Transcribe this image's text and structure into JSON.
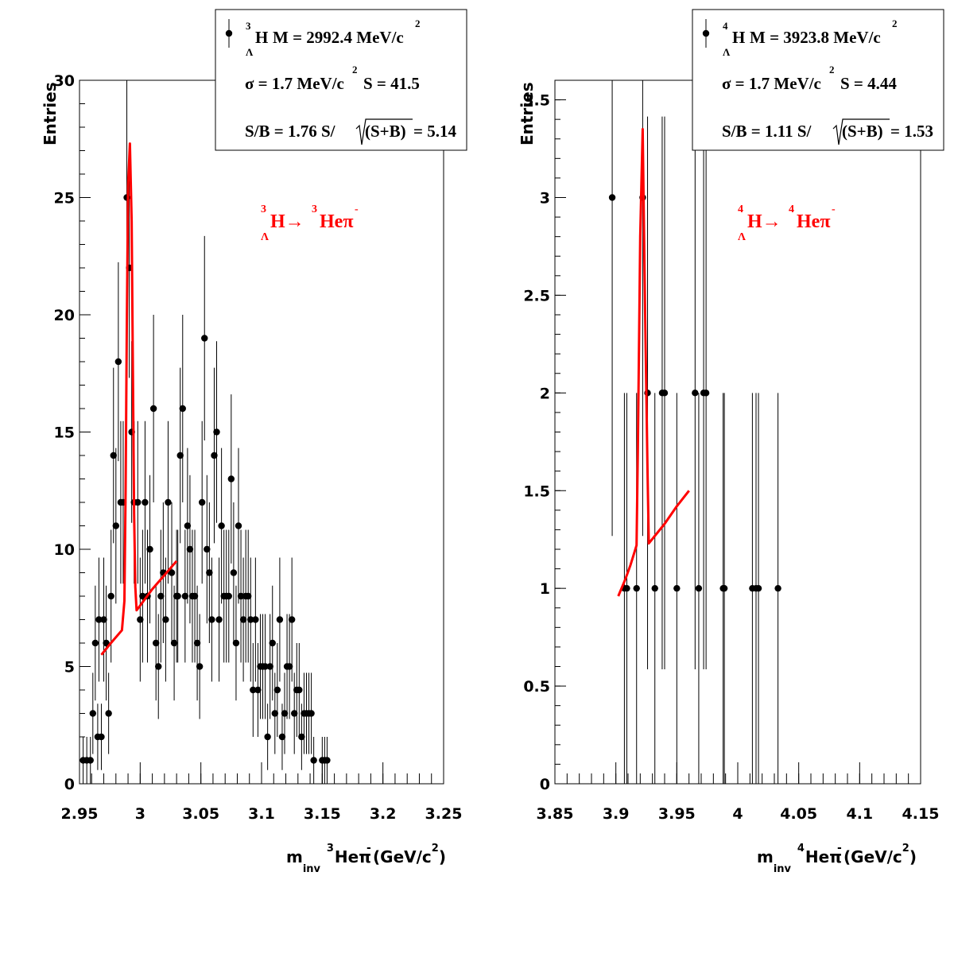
{
  "chart_data": [
    {
      "type": "scatter",
      "xlabel": {
        "main": "m",
        "sub": "inv",
        "sup_left": "3",
        "nucleus": "He",
        "pion": "π",
        "charge": "-",
        "unit": "(GeV/c",
        "unit_sup": "2",
        "unit_close": ")"
      },
      "ylabel": "Entries",
      "xlim": [
        2.95,
        3.25
      ],
      "ylim": [
        0,
        30
      ],
      "xticks": [
        2.95,
        3,
        3.05,
        3.1,
        3.15,
        3.2,
        3.25
      ],
      "xtick_labels": [
        "2.95",
        "3",
        "3.05",
        "3.1",
        "3.15",
        "3.2",
        "3.25"
      ],
      "yticks": [
        0,
        5,
        10,
        15,
        20,
        25,
        30
      ],
      "ytick_labels": [
        "0",
        "5",
        "10",
        "15",
        "20",
        "25",
        "30"
      ],
      "legend": {
        "line1": {
          "sup": "3",
          "nucleus": "H",
          "sub": "Λ",
          "text": "M = 2992.4 MeV/c",
          "text_sup": "2"
        },
        "line2": {
          "text": "σ = 1.7 MeV/c",
          "text_sup": "2",
          "text2": "S = 41.5"
        },
        "line3": {
          "text": "S/B = 1.76  S/",
          "sqrt_arg": "(S+B)",
          "text2": "= 5.14"
        }
      },
      "annotation": {
        "sup1": "3",
        "a": "H→",
        "sup2": "3",
        "b": "Heπ",
        "charge": "-",
        "sub": "Λ"
      },
      "series": [
        {
          "values": [
            [
              2.953,
              1
            ],
            [
              2.956,
              1
            ],
            [
              2.959,
              1
            ],
            [
              2.961,
              3
            ],
            [
              2.963,
              6
            ],
            [
              2.965,
              2
            ],
            [
              2.966,
              7
            ],
            [
              2.968,
              2
            ],
            [
              2.97,
              7
            ],
            [
              2.972,
              6
            ],
            [
              2.974,
              3
            ],
            [
              2.976,
              8
            ],
            [
              2.978,
              14
            ],
            [
              2.98,
              11
            ],
            [
              2.982,
              18
            ],
            [
              2.984,
              12
            ],
            [
              2.986,
              12
            ],
            [
              2.989,
              25
            ],
            [
              2.991,
              22
            ],
            [
              2.993,
              15
            ],
            [
              2.995,
              12
            ],
            [
              2.998,
              12
            ],
            [
              3.0,
              7
            ],
            [
              3.002,
              8
            ],
            [
              3.004,
              12
            ],
            [
              3.006,
              8
            ],
            [
              3.008,
              10
            ],
            [
              3.011,
              16
            ],
            [
              3.013,
              6
            ],
            [
              3.015,
              5
            ],
            [
              3.017,
              8
            ],
            [
              3.019,
              9
            ],
            [
              3.021,
              7
            ],
            [
              3.023,
              12
            ],
            [
              3.026,
              9
            ],
            [
              3.028,
              6
            ],
            [
              3.03,
              8
            ],
            [
              3.031,
              8
            ],
            [
              3.033,
              14
            ],
            [
              3.035,
              16
            ],
            [
              3.037,
              8
            ],
            [
              3.039,
              11
            ],
            [
              3.041,
              10
            ],
            [
              3.043,
              8
            ],
            [
              3.045,
              8
            ],
            [
              3.047,
              6
            ],
            [
              3.049,
              5
            ],
            [
              3.051,
              12
            ],
            [
              3.053,
              19
            ],
            [
              3.055,
              10
            ],
            [
              3.057,
              9
            ],
            [
              3.059,
              7
            ],
            [
              3.061,
              14
            ],
            [
              3.063,
              15
            ],
            [
              3.065,
              7
            ],
            [
              3.067,
              11
            ],
            [
              3.069,
              8
            ],
            [
              3.071,
              8
            ],
            [
              3.073,
              8
            ],
            [
              3.075,
              13
            ],
            [
              3.077,
              9
            ],
            [
              3.079,
              6
            ],
            [
              3.081,
              11
            ],
            [
              3.083,
              8
            ],
            [
              3.085,
              7
            ],
            [
              3.087,
              8
            ],
            [
              3.089,
              8
            ],
            [
              3.091,
              7
            ],
            [
              3.093,
              4
            ],
            [
              3.095,
              7
            ],
            [
              3.097,
              4
            ],
            [
              3.099,
              5
            ],
            [
              3.101,
              5
            ],
            [
              3.103,
              5
            ],
            [
              3.105,
              2
            ],
            [
              3.107,
              5
            ],
            [
              3.109,
              6
            ],
            [
              3.111,
              3
            ],
            [
              3.113,
              4
            ],
            [
              3.115,
              7
            ],
            [
              3.117,
              2
            ],
            [
              3.119,
              3
            ],
            [
              3.121,
              5
            ],
            [
              3.123,
              5
            ],
            [
              3.125,
              7
            ],
            [
              3.127,
              3
            ],
            [
              3.129,
              4
            ],
            [
              3.131,
              4
            ],
            [
              3.133,
              2
            ],
            [
              3.135,
              3
            ],
            [
              3.137,
              3
            ],
            [
              3.139,
              3
            ],
            [
              3.141,
              3
            ],
            [
              3.143,
              1
            ],
            [
              3.15,
              1
            ],
            [
              3.152,
              1
            ],
            [
              3.154,
              1
            ]
          ]
        }
      ],
      "fit": {
        "color": "#ff0000",
        "points": [
          [
            2.968,
            5.5
          ],
          [
            2.975,
            5.95
          ],
          [
            2.985,
            6.55
          ],
          [
            2.987,
            7.8
          ],
          [
            2.988,
            12.5
          ],
          [
            2.989,
            19.5
          ],
          [
            2.99,
            25.5
          ],
          [
            2.9915,
            27.3
          ],
          [
            2.993,
            24.0
          ],
          [
            2.994,
            17.5
          ],
          [
            2.995,
            11.5
          ],
          [
            2.996,
            8.4
          ],
          [
            2.997,
            7.4
          ],
          [
            3.0,
            7.6
          ],
          [
            3.01,
            8.3
          ],
          [
            3.02,
            8.9
          ],
          [
            3.03,
            9.5
          ]
        ]
      }
    },
    {
      "type": "scatter",
      "xlabel": {
        "main": "m",
        "sub": "inv",
        "sup_left": "4",
        "nucleus": "He",
        "pion": "π",
        "charge": "-",
        "unit": " (GeV/c",
        "unit_sup": "2",
        "unit_close": ")"
      },
      "ylabel": "Entries",
      "xlim": [
        3.85,
        4.15
      ],
      "ylim": [
        0,
        3.6
      ],
      "xticks": [
        3.85,
        3.9,
        3.95,
        4,
        4.05,
        4.1,
        4.15
      ],
      "xtick_labels": [
        "3.85",
        "3.9",
        "3.95",
        "4",
        "4.05",
        "4.1",
        "4.15"
      ],
      "yticks": [
        0,
        0.5,
        1,
        1.5,
        2,
        2.5,
        3,
        3.5
      ],
      "ytick_labels": [
        "0",
        "0.5",
        "1",
        "1.5",
        "2",
        "2.5",
        "3",
        "3.5"
      ],
      "legend": {
        "line1": {
          "sup": "4",
          "nucleus": "H",
          "sub": "Λ",
          "text": "M = 3923.8 MeV/c",
          "text_sup": "2"
        },
        "line2": {
          "text": "σ = 1.7 MeV/c",
          "text_sup": "2",
          "text2": "S = 4.44"
        },
        "line3": {
          "text": "S/B = 1.11  S/",
          "sqrt_arg": "(S+B)",
          "text2": "= 1.53"
        }
      },
      "annotation": {
        "sup1": "4",
        "a": "H→",
        "sup2": "4",
        "b": "Heπ",
        "charge": "-",
        "sub": "Λ"
      },
      "series": [
        {
          "values": [
            [
              3.897,
              3
            ],
            [
              3.907,
              1
            ],
            [
              3.909,
              1
            ],
            [
              3.917,
              1
            ],
            [
              3.922,
              3
            ],
            [
              3.926,
              2
            ],
            [
              3.932,
              1
            ],
            [
              3.938,
              2
            ],
            [
              3.94,
              2
            ],
            [
              3.95,
              1
            ],
            [
              3.965,
              2
            ],
            [
              3.968,
              1
            ],
            [
              3.972,
              2
            ],
            [
              3.974,
              2
            ],
            [
              3.988,
              1
            ],
            [
              3.989,
              1
            ],
            [
              4.012,
              1
            ],
            [
              4.015,
              1
            ],
            [
              4.017,
              1
            ],
            [
              4.033,
              1
            ]
          ]
        }
      ],
      "fit": {
        "color": "#ff0000",
        "points": [
          [
            3.902,
            0.96
          ],
          [
            3.908,
            1.05
          ],
          [
            3.912,
            1.12
          ],
          [
            3.917,
            1.22
          ],
          [
            3.918,
            1.7
          ],
          [
            3.92,
            2.8
          ],
          [
            3.922,
            3.35
          ],
          [
            3.924,
            2.4
          ],
          [
            3.926,
            1.6
          ],
          [
            3.927,
            1.23
          ],
          [
            3.94,
            1.33
          ],
          [
            3.95,
            1.42
          ],
          [
            3.96,
            1.5
          ]
        ]
      }
    }
  ]
}
